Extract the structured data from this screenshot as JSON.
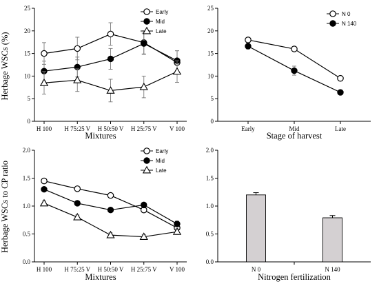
{
  "chart_data": [
    {
      "type": "line",
      "ylabel": "Herbage  WSCs (%)",
      "xlabel": "Mixtures",
      "categories": [
        "H 100",
        "H 75:25 V",
        "H 50:50 V",
        "H 25:75 V",
        "V 100"
      ],
      "ylim": [
        0,
        25
      ],
      "yticks": [
        "0",
        "5",
        "10",
        "15",
        "20",
        "25"
      ],
      "legend_position": "top-right",
      "series": [
        {
          "name": "Early",
          "marker": "open-circle",
          "values": [
            15.0,
            16.1,
            19.3,
            17.4,
            13.0
          ],
          "errors": [
            2.4,
            2.5,
            2.5,
            2.6,
            2.6
          ]
        },
        {
          "name": "Mid",
          "marker": "filled-circle",
          "values": [
            11.1,
            12.0,
            13.8,
            17.2,
            13.4
          ],
          "errors": [
            2.2,
            2.2,
            2.3,
            2.3,
            2.2
          ]
        },
        {
          "name": "Late",
          "marker": "open-triangle",
          "values": [
            8.5,
            9.1,
            6.8,
            7.6,
            11.0
          ],
          "errors": [
            2.5,
            2.5,
            2.5,
            2.4,
            2.4
          ]
        }
      ]
    },
    {
      "type": "line",
      "xlabel": "Stage of harvest",
      "categories": [
        "Early",
        "Mid",
        "Late"
      ],
      "ylim": [
        0,
        25
      ],
      "yticks": [
        "0",
        "5",
        "10",
        "15",
        "20",
        "25"
      ],
      "legend_position": "top-left",
      "series": [
        {
          "name": "N 0",
          "marker": "open-circle",
          "values": [
            18.0,
            16.0,
            9.5
          ],
          "errors": [
            0.5,
            0.5,
            0.5
          ]
        },
        {
          "name": "N 140",
          "marker": "filled-circle",
          "values": [
            16.6,
            11.2,
            6.4
          ],
          "errors": [
            0.6,
            1.0,
            0.5
          ]
        }
      ]
    },
    {
      "type": "line",
      "ylabel": "Herbage  WSCs to CP ratio",
      "xlabel": "Mixtures",
      "categories": [
        "H 100",
        "H 75:25 V",
        "H 50:50 V",
        "H 25:75 V",
        "V 100"
      ],
      "ylim": [
        0,
        2.0
      ],
      "yticks": [
        "0.0",
        "0.5",
        "1.0",
        "1.5",
        "2.0"
      ],
      "legend_position": "top-right",
      "series": [
        {
          "name": "Early",
          "marker": "open-circle",
          "values": [
            1.45,
            1.31,
            1.19,
            0.93,
            0.61
          ],
          "errors": [
            0.03,
            0.03,
            0.03,
            0.03,
            0.05
          ]
        },
        {
          "name": "Mid",
          "marker": "filled-circle",
          "values": [
            1.3,
            1.05,
            0.93,
            1.02,
            0.68
          ],
          "errors": [
            0.03,
            0.03,
            0.03,
            0.03,
            0.05
          ]
        },
        {
          "name": "Late",
          "marker": "open-triangle",
          "values": [
            1.05,
            0.8,
            0.48,
            0.45,
            0.54
          ],
          "errors": [
            0.04,
            0.04,
            0.04,
            0.04,
            0.05
          ]
        }
      ]
    },
    {
      "type": "bar",
      "xlabel": "Nitrogen fertilization",
      "categories": [
        "N 0",
        "N 140"
      ],
      "values": [
        1.2,
        0.79
      ],
      "errors": [
        0.04,
        0.04
      ],
      "ylim": [
        0,
        2.0
      ],
      "yticks": [
        "0.0",
        "0.5",
        "1.0",
        "1.5",
        "2.0"
      ],
      "bar_color": "#d4d0d2"
    }
  ]
}
